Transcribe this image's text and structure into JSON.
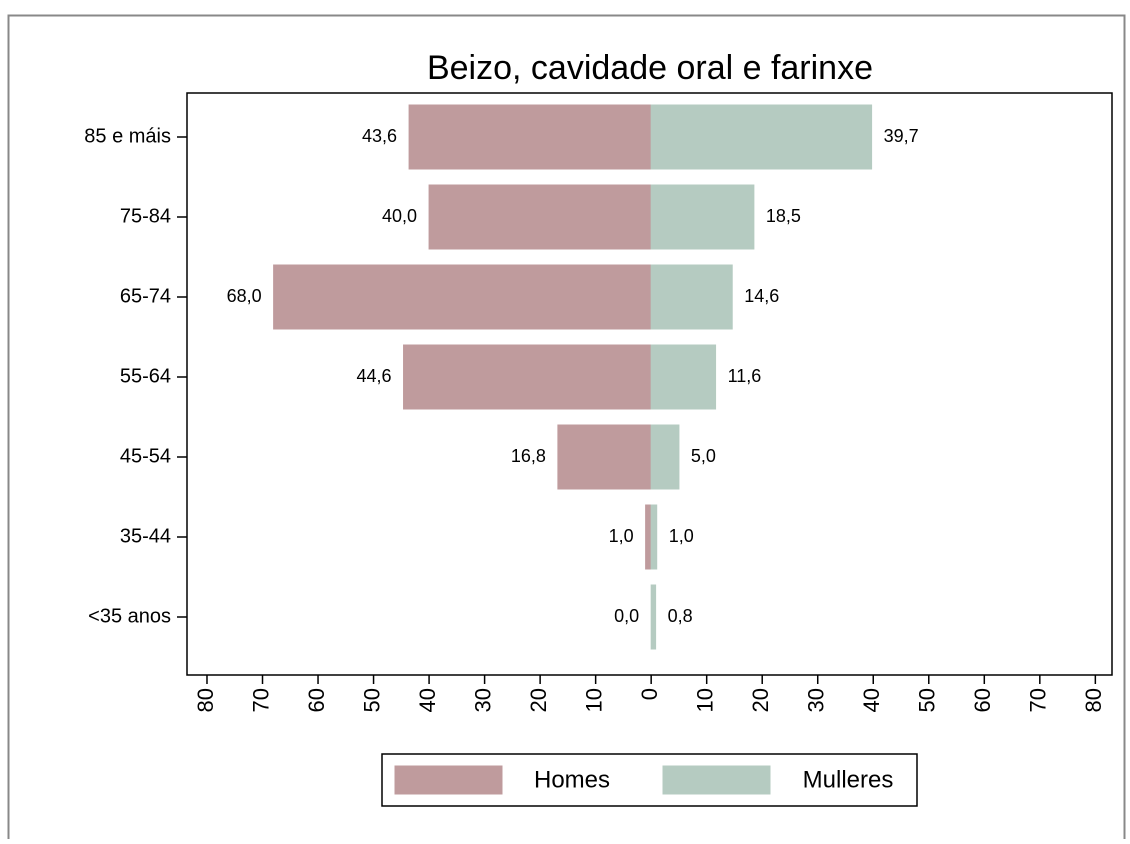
{
  "chart_data": {
    "type": "pyramid",
    "title": "Beizo, cavidade oral e farinxe",
    "categories": [
      "85 e máis",
      "75-84",
      "65-74",
      "55-64",
      "45-54",
      "35-44",
      "<35 anos"
    ],
    "series": [
      {
        "name": "Homes",
        "color": "#bf9b9d",
        "values": [
          43.6,
          40.0,
          68.0,
          44.6,
          16.8,
          1.0,
          0.0
        ],
        "value_labels": [
          "43,6",
          "40,0",
          "68,0",
          "44,6",
          "16,8",
          "1,0",
          "0,0"
        ]
      },
      {
        "name": "Mulleres",
        "color": "#b5cbc1",
        "values": [
          39.7,
          18.5,
          14.6,
          11.6,
          5.0,
          1.0,
          0.8
        ],
        "value_labels": [
          "39,7",
          "18,5",
          "14,6",
          "11,6",
          "5,0",
          "1,0",
          "0,8"
        ]
      }
    ],
    "xlim": [
      -83.6,
      83.0
    ],
    "xticks": [
      {
        "value": -80,
        "label": "80"
      },
      {
        "value": -70,
        "label": "70"
      },
      {
        "value": -60,
        "label": "60"
      },
      {
        "value": -50,
        "label": "50"
      },
      {
        "value": -40,
        "label": "40"
      },
      {
        "value": -30,
        "label": "30"
      },
      {
        "value": -20,
        "label": "20"
      },
      {
        "value": -10,
        "label": "10"
      },
      0,
      10,
      20,
      30,
      40,
      50,
      60,
      70,
      80
    ],
    "legend": "bottom"
  }
}
